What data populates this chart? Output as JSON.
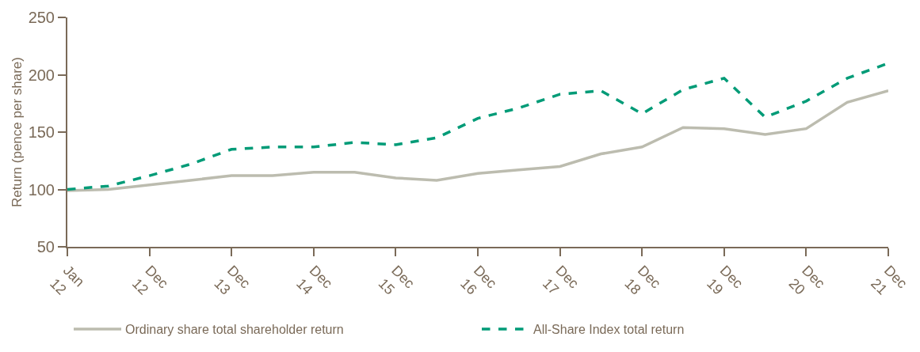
{
  "chart_data": {
    "type": "line",
    "ylabel": "Return (pence per share)",
    "categories": [
      "Jan 12",
      null,
      "Dec 12",
      null,
      "Dec 13",
      null,
      "Dec 14",
      null,
      "Dec 15",
      null,
      "Dec 16",
      null,
      "Dec 17",
      null,
      "Dec 18",
      null,
      "Dec 19",
      null,
      "Dec 20",
      null,
      "Dec 21"
    ],
    "series": [
      {
        "name": "Ordinary share total shareholder return",
        "color": "#bcbcaf",
        "line_style": "solid",
        "values": [
          99,
          100,
          104,
          108,
          112,
          112,
          115,
          115,
          110,
          108,
          114,
          117,
          120,
          131,
          137,
          154,
          153,
          148,
          153,
          176,
          186
        ]
      },
      {
        "name": "All-Share Index total return",
        "color": "#009b77",
        "line_style": "dashed",
        "values": [
          100,
          103,
          112,
          122,
          135,
          137,
          137,
          141,
          139,
          145,
          162,
          171,
          183,
          186,
          166,
          187,
          197,
          163,
          177,
          197,
          210
        ]
      }
    ],
    "ylim": [
      50,
      250
    ],
    "yticks": [
      50,
      100,
      150,
      200,
      250
    ],
    "legend": "bottom",
    "marker": "none"
  }
}
